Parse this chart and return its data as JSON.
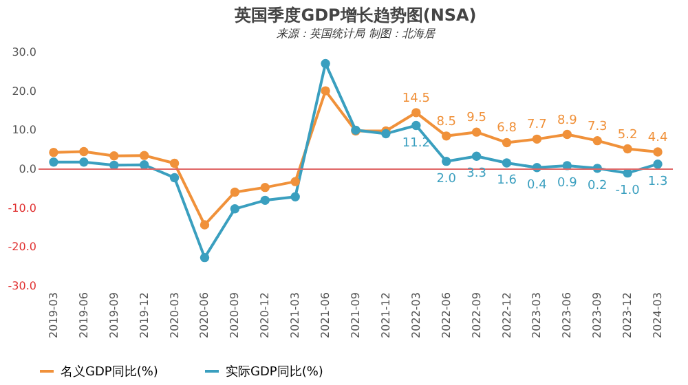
{
  "chart_data": {
    "type": "line",
    "title": "英国季度GDP增长趋势图(NSA)",
    "subtitle": "来源：英国统计局 制图：北海居",
    "categories": [
      "2019-03",
      "2019-06",
      "2019-09",
      "2019-12",
      "2020-03",
      "2020-06",
      "2020-09",
      "2020-12",
      "2021-03",
      "2021-06",
      "2021-09",
      "2021-12",
      "2022-03",
      "2022-06",
      "2022-09",
      "2022-12",
      "2023-03",
      "2023-06",
      "2023-09",
      "2023-12",
      "2024-03"
    ],
    "series": [
      {
        "name": "名义GDP同比(%)",
        "color": "#f0913a",
        "values": [
          4.3,
          4.5,
          3.4,
          3.5,
          1.5,
          -14.3,
          -5.9,
          -4.7,
          -3.2,
          20.1,
          9.8,
          9.8,
          14.5,
          8.5,
          9.5,
          6.8,
          7.7,
          8.9,
          7.3,
          5.2,
          4.4
        ],
        "value_labels": [
          null,
          null,
          null,
          null,
          null,
          null,
          null,
          null,
          null,
          null,
          null,
          null,
          "14.5",
          "8.5",
          "9.5",
          "6.8",
          "7.7",
          "8.9",
          "7.3",
          "5.2",
          "4.4"
        ]
      },
      {
        "name": "实际GDP同比(%)",
        "color": "#3a9fbf",
        "values": [
          1.8,
          1.8,
          1.0,
          1.1,
          -2.2,
          -22.7,
          -10.2,
          -8.0,
          -7.1,
          27.1,
          10.0,
          9.1,
          11.2,
          2.0,
          3.3,
          1.6,
          0.4,
          0.9,
          0.2,
          -1.0,
          1.3
        ],
        "value_labels": [
          null,
          null,
          null,
          null,
          null,
          null,
          null,
          null,
          null,
          null,
          null,
          null,
          "11.2",
          "2.0",
          "3.3",
          "1.6",
          "0.4",
          "0.9",
          "0.2",
          "-1.0",
          "1.3"
        ]
      }
    ],
    "ylim": [
      -30,
      30
    ],
    "yticks": [
      {
        "value": -30,
        "label": "-30.0"
      },
      {
        "value": -20,
        "label": "-20.0"
      },
      {
        "value": -10,
        "label": "-10.0"
      },
      {
        "value": 0,
        "label": "0.0"
      },
      {
        "value": 10,
        "label": "10.0"
      },
      {
        "value": 20,
        "label": "20.0"
      },
      {
        "value": 30,
        "label": "30.0"
      }
    ],
    "ref_lines": [
      {
        "axis": "y",
        "value": 0,
        "color": "#e06666"
      }
    ],
    "marker": "circle",
    "legend": "bottom"
  }
}
